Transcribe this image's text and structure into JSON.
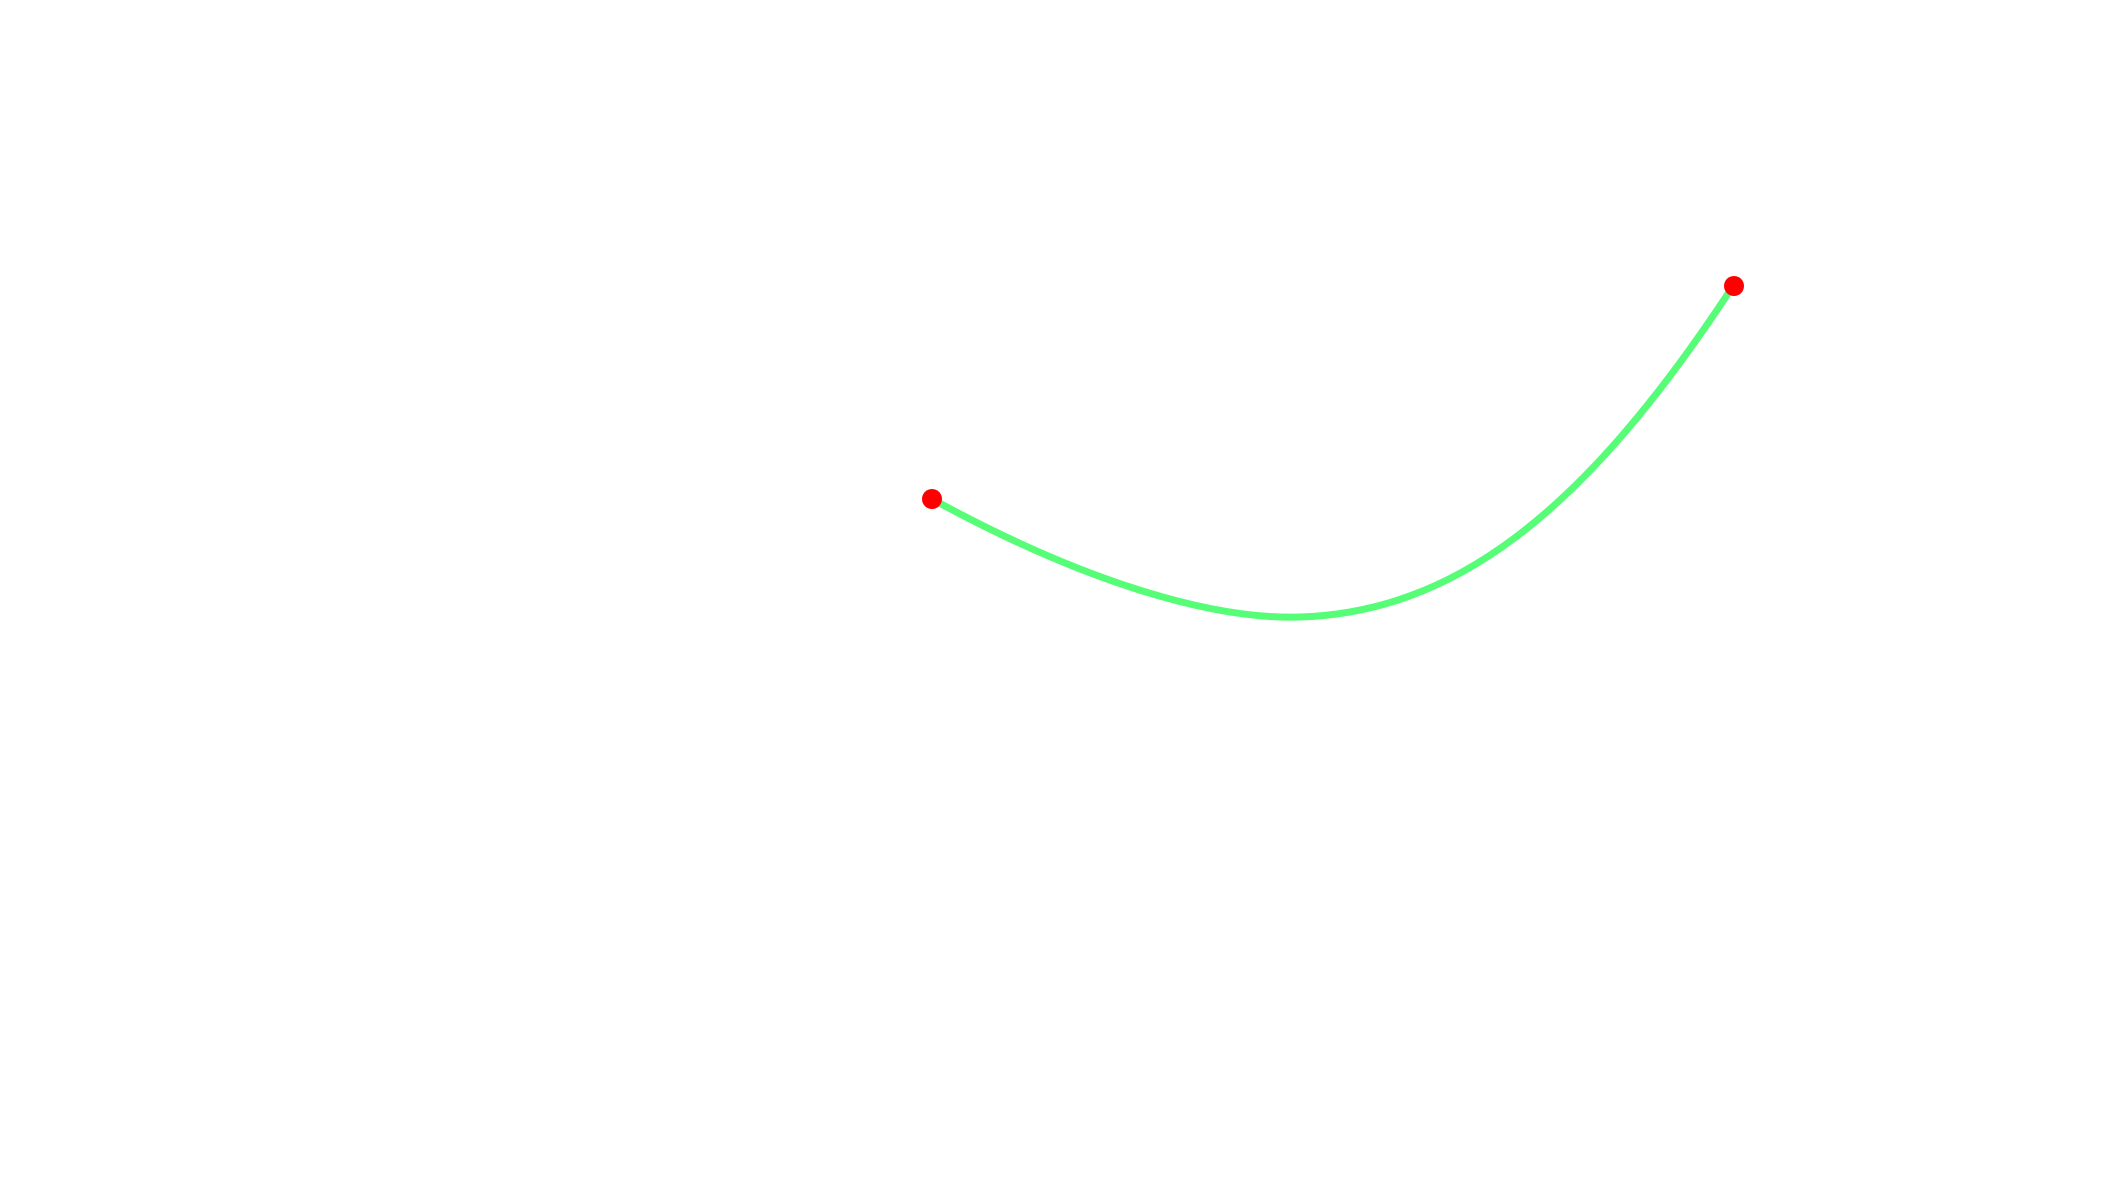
{
  "diagram": {
    "background_color": "#ffffff",
    "curve": {
      "type": "cubic-bezier",
      "stroke_color": "#56fd76"
    },
    "endpoints": [
      {
        "name": "start-point",
        "fill_color": "#fe0000"
      },
      {
        "name": "end-point",
        "fill_color": "#fe0000"
      }
    ]
  }
}
